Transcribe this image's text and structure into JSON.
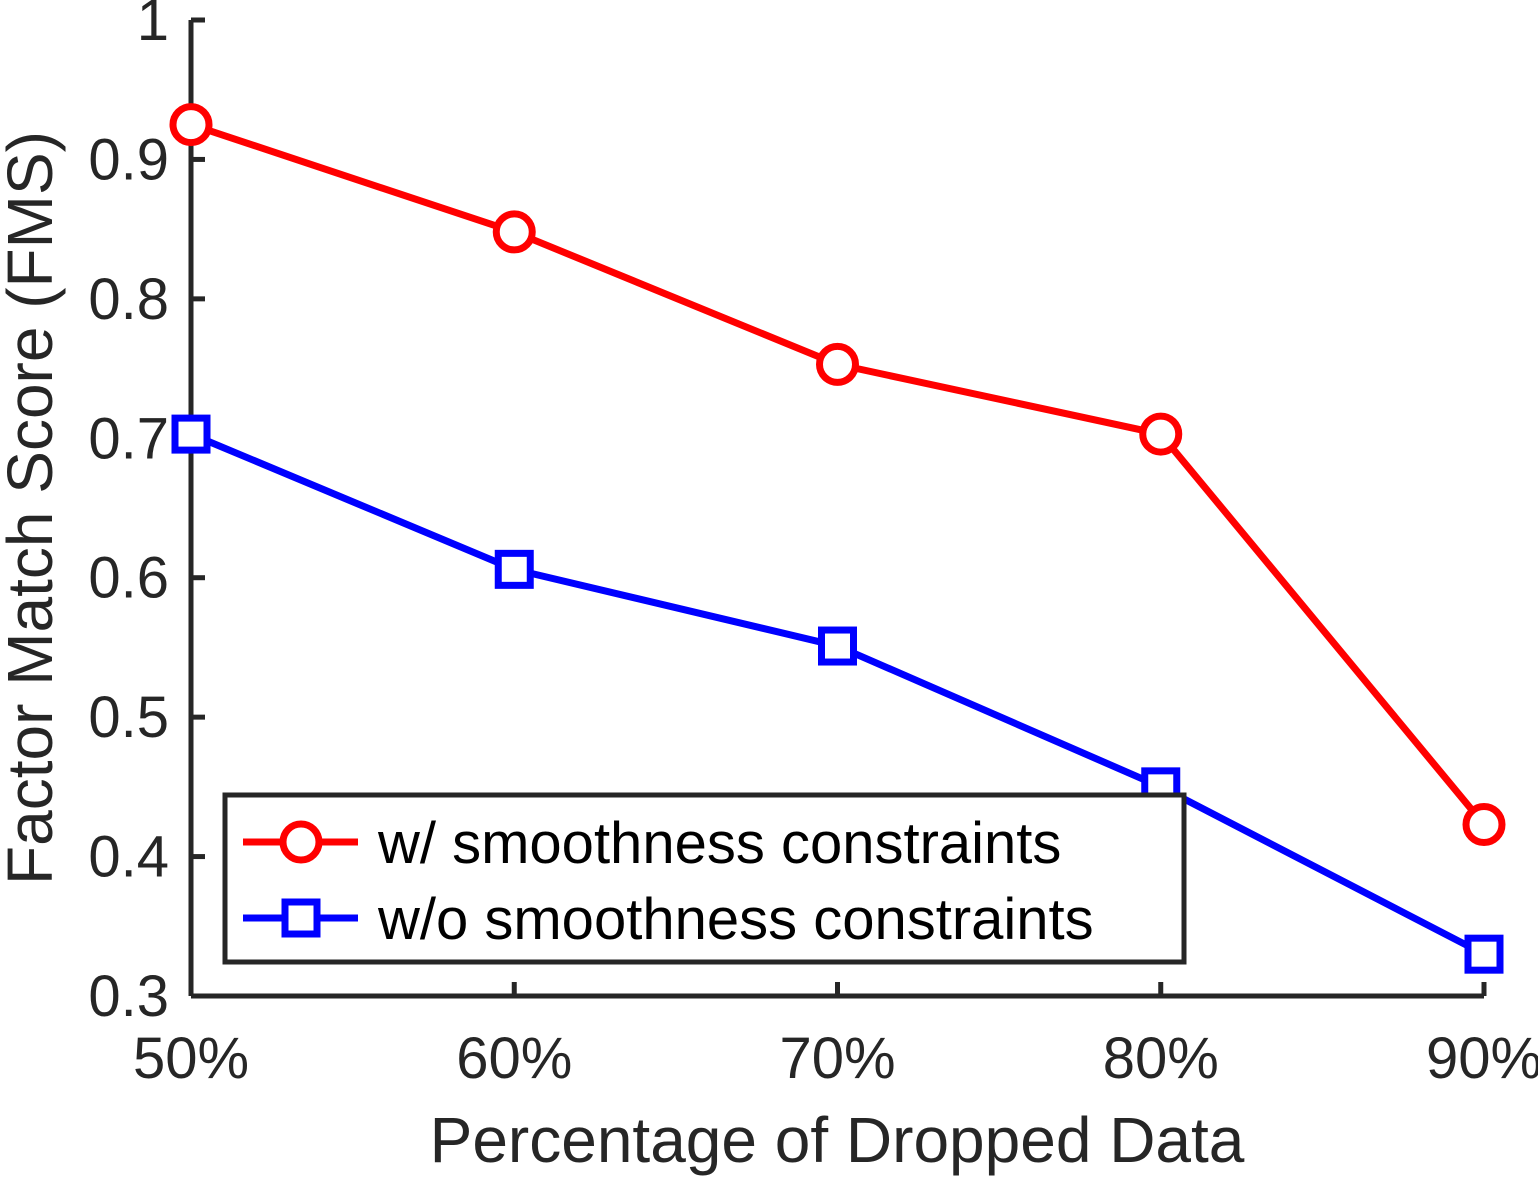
{
  "chart_data": {
    "type": "line",
    "title": "",
    "xlabel": "Percentage of Dropped Data",
    "ylabel": "Factor Match Score (FMS)",
    "categories": [
      "50%",
      "60%",
      "70%",
      "80%",
      "90%"
    ],
    "ylim": [
      0.3,
      1.0
    ],
    "yticks": [
      {
        "value": 0.3,
        "label": "0.3"
      },
      {
        "value": 0.4,
        "label": "0.4"
      },
      {
        "value": 0.5,
        "label": "0.5"
      },
      {
        "value": 0.6,
        "label": "0.6"
      },
      {
        "value": 0.7,
        "label": "0.7"
      },
      {
        "value": 0.8,
        "label": "0.8"
      },
      {
        "value": 0.9,
        "label": "0.9"
      },
      {
        "value": 1.0,
        "label": "1"
      }
    ],
    "grid": false,
    "legend_position": "bottom-left",
    "series": [
      {
        "name": "w/ smoothness constraints",
        "color": "#ff0000",
        "marker": "circle",
        "values": [
          0.925,
          0.848,
          0.753,
          0.703,
          0.423
        ]
      },
      {
        "name": "w/o smoothness constraints",
        "color": "#0000ff",
        "marker": "square",
        "values": [
          0.703,
          0.606,
          0.551,
          0.45,
          0.33
        ]
      }
    ]
  }
}
